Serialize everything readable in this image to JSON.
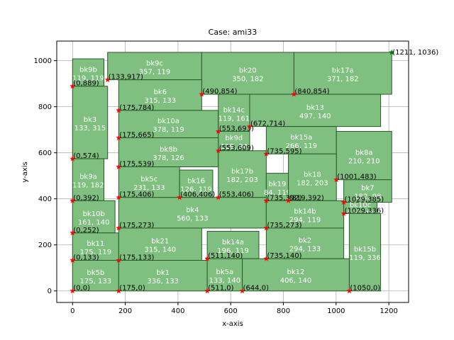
{
  "chart_data": {
    "type": "block-placement",
    "title": "Case: ami33",
    "xlabel": "x-axis",
    "ylabel": "y-axis",
    "xlim": [
      -60,
      1275
    ],
    "ylim": [
      -50,
      1085
    ],
    "xticks": [
      0,
      200,
      400,
      600,
      800,
      1000,
      1200
    ],
    "yticks": [
      0,
      200,
      400,
      600,
      800,
      1000
    ],
    "grid": true,
    "colors": {
      "block_fill": "#7fbf7f",
      "block_edge": "#2a5a2a",
      "block_text": "#ffffff",
      "marker": "#ff0000",
      "corner_marker": "#008000",
      "grid": "#b0b0b0"
    },
    "blocks": [
      {
        "name": "bk9b",
        "x": 0,
        "y": 889,
        "w": 119,
        "h": 119,
        "dims": "119, 119"
      },
      {
        "name": "bk9c",
        "x": 133,
        "y": 917,
        "w": 357,
        "h": 119,
        "dims": "357, 119"
      },
      {
        "name": "bk20",
        "x": 490,
        "y": 854,
        "w": 350,
        "h": 182,
        "dims": "350, 182"
      },
      {
        "name": "bk17a",
        "x": 840,
        "y": 854,
        "w": 371,
        "h": 182,
        "dims": "371, 182"
      },
      {
        "name": "bk6",
        "x": 175,
        "y": 784,
        "w": 315,
        "h": 133,
        "dims": "315, 133"
      },
      {
        "name": "bk3",
        "x": 0,
        "y": 574,
        "w": 133,
        "h": 315,
        "dims": "133, 315"
      },
      {
        "name": "bk10a",
        "x": 175,
        "y": 665,
        "w": 378,
        "h": 119,
        "dims": "378, 119"
      },
      {
        "name": "bk14c",
        "x": 553,
        "y": 693,
        "w": 119,
        "h": 161,
        "dims": "119, 161"
      },
      {
        "name": "bk13",
        "x": 672,
        "y": 714,
        "w": 497,
        "h": 140,
        "dims": "497, 140"
      },
      {
        "name": "bk9d",
        "x": 553,
        "y": 609,
        "w": 119,
        "h": 84,
        "dims": "119, 84"
      },
      {
        "name": "bk15a",
        "x": 735,
        "y": 595,
        "w": 266,
        "h": 119,
        "dims": "266, 119"
      },
      {
        "name": "bk8b",
        "x": 175,
        "y": 539,
        "w": 378,
        "h": 126,
        "dims": "378, 126"
      },
      {
        "name": "bk8a",
        "x": 1001,
        "y": 483,
        "w": 210,
        "h": 210,
        "dims": "210, 210"
      },
      {
        "name": "bk9a",
        "x": 0,
        "y": 392,
        "w": 119,
        "h": 182,
        "dims": "119, 182"
      },
      {
        "name": "bk5c",
        "x": 175,
        "y": 406,
        "w": 231,
        "h": 133,
        "dims": "231, 133"
      },
      {
        "name": "bk16",
        "x": 406,
        "y": 406,
        "w": 126,
        "h": 119,
        "dims": "126, 119"
      },
      {
        "name": "bk17b",
        "x": 553,
        "y": 406,
        "w": 182,
        "h": 203,
        "dims": "182, 203"
      },
      {
        "name": "bk19",
        "x": 735,
        "y": 392,
        "w": 84,
        "h": 119,
        "dims": "84, 119"
      },
      {
        "name": "bk18",
        "x": 819,
        "y": 392,
        "w": 182,
        "h": 203,
        "dims": "182, 203"
      },
      {
        "name": "bk7",
        "x": 1029,
        "y": 385,
        "w": 182,
        "h": 98,
        "dims": "182, 98"
      },
      {
        "name": "bk10b",
        "x": 0,
        "y": 252,
        "w": 161,
        "h": 140,
        "dims": "161, 140"
      },
      {
        "name": "bk4",
        "x": 175,
        "y": 273,
        "w": 560,
        "h": 133,
        "dims": "560, 133"
      },
      {
        "name": "bk14b",
        "x": 735,
        "y": 273,
        "w": 294,
        "h": 119,
        "dims": "294, 119"
      },
      {
        "name": "bk10c",
        "x": 1029,
        "y": 336,
        "w": 126,
        "h": 49,
        "dims": "126, 49"
      },
      {
        "name": "bk11",
        "x": 0,
        "y": 133,
        "w": 175,
        "h": 119,
        "dims": "175, 119"
      },
      {
        "name": "bk21",
        "x": 175,
        "y": 133,
        "w": 315,
        "h": 140,
        "dims": "315, 140"
      },
      {
        "name": "bk14a",
        "x": 511,
        "y": 140,
        "w": 196,
        "h": 119,
        "dims": "196, 119"
      },
      {
        "name": "bk2",
        "x": 735,
        "y": 140,
        "w": 294,
        "h": 133,
        "dims": "294, 133"
      },
      {
        "name": "bk15b",
        "x": 1050,
        "y": 0,
        "w": 119,
        "h": 336,
        "dims": "119, 336"
      },
      {
        "name": "bk5b",
        "x": 0,
        "y": 0,
        "w": 175,
        "h": 133,
        "dims": "175, 133"
      },
      {
        "name": "bk1",
        "x": 175,
        "y": 0,
        "w": 336,
        "h": 133,
        "dims": "336, 133"
      },
      {
        "name": "bk5a",
        "x": 511,
        "y": 0,
        "w": 133,
        "h": 140,
        "dims": "133, 140"
      },
      {
        "name": "bk12",
        "x": 644,
        "y": 0,
        "w": 406,
        "h": 140,
        "dims": "406, 140"
      }
    ],
    "points": [
      {
        "x": 0,
        "y": 0,
        "label": "(0,0)"
      },
      {
        "x": 175,
        "y": 0,
        "label": "(175,0)"
      },
      {
        "x": 511,
        "y": 0,
        "label": "(511,0)"
      },
      {
        "x": 644,
        "y": 0,
        "label": "(644,0)"
      },
      {
        "x": 1050,
        "y": 0,
        "label": "(1050,0)"
      },
      {
        "x": 0,
        "y": 133,
        "label": "(0,133)"
      },
      {
        "x": 175,
        "y": 133,
        "label": "(175,133)"
      },
      {
        "x": 511,
        "y": 140,
        "label": "(511,140)"
      },
      {
        "x": 735,
        "y": 140,
        "label": "(735,140)"
      },
      {
        "x": 0,
        "y": 252,
        "label": "(0,252)"
      },
      {
        "x": 175,
        "y": 273,
        "label": "(175,273)"
      },
      {
        "x": 735,
        "y": 273,
        "label": "(735,273)"
      },
      {
        "x": 1029,
        "y": 336,
        "label": "(1029,336)"
      },
      {
        "x": 1029,
        "y": 385,
        "label": "(1029,385)"
      },
      {
        "x": 0,
        "y": 392,
        "label": "(0,392)"
      },
      {
        "x": 175,
        "y": 406,
        "label": "(175,406)"
      },
      {
        "x": 406,
        "y": 406,
        "label": "(406,406)"
      },
      {
        "x": 553,
        "y": 406,
        "label": "(553,406)"
      },
      {
        "x": 735,
        "y": 392,
        "label": "(735,392)"
      },
      {
        "x": 819,
        "y": 392,
        "label": "(819,392)"
      },
      {
        "x": 1001,
        "y": 483,
        "label": "(1001,483)"
      },
      {
        "x": 175,
        "y": 539,
        "label": "(175,539)"
      },
      {
        "x": 0,
        "y": 574,
        "label": "(0,574)"
      },
      {
        "x": 553,
        "y": 609,
        "label": "(553,609)"
      },
      {
        "x": 735,
        "y": 595,
        "label": "(735,595)"
      },
      {
        "x": 175,
        "y": 665,
        "label": "(175,665)"
      },
      {
        "x": 553,
        "y": 693,
        "label": "(553,693)"
      },
      {
        "x": 672,
        "y": 714,
        "label": "(672,714)"
      },
      {
        "x": 175,
        "y": 784,
        "label": "(175,784)"
      },
      {
        "x": 490,
        "y": 854,
        "label": "(490,854)"
      },
      {
        "x": 840,
        "y": 854,
        "label": "(840,854)"
      },
      {
        "x": 0,
        "y": 889,
        "label": "(0,889)"
      },
      {
        "x": 133,
        "y": 917,
        "label": "(133,917)"
      }
    ],
    "corner_point": {
      "x": 1211,
      "y": 1036,
      "label": "(1211, 1036)"
    }
  }
}
